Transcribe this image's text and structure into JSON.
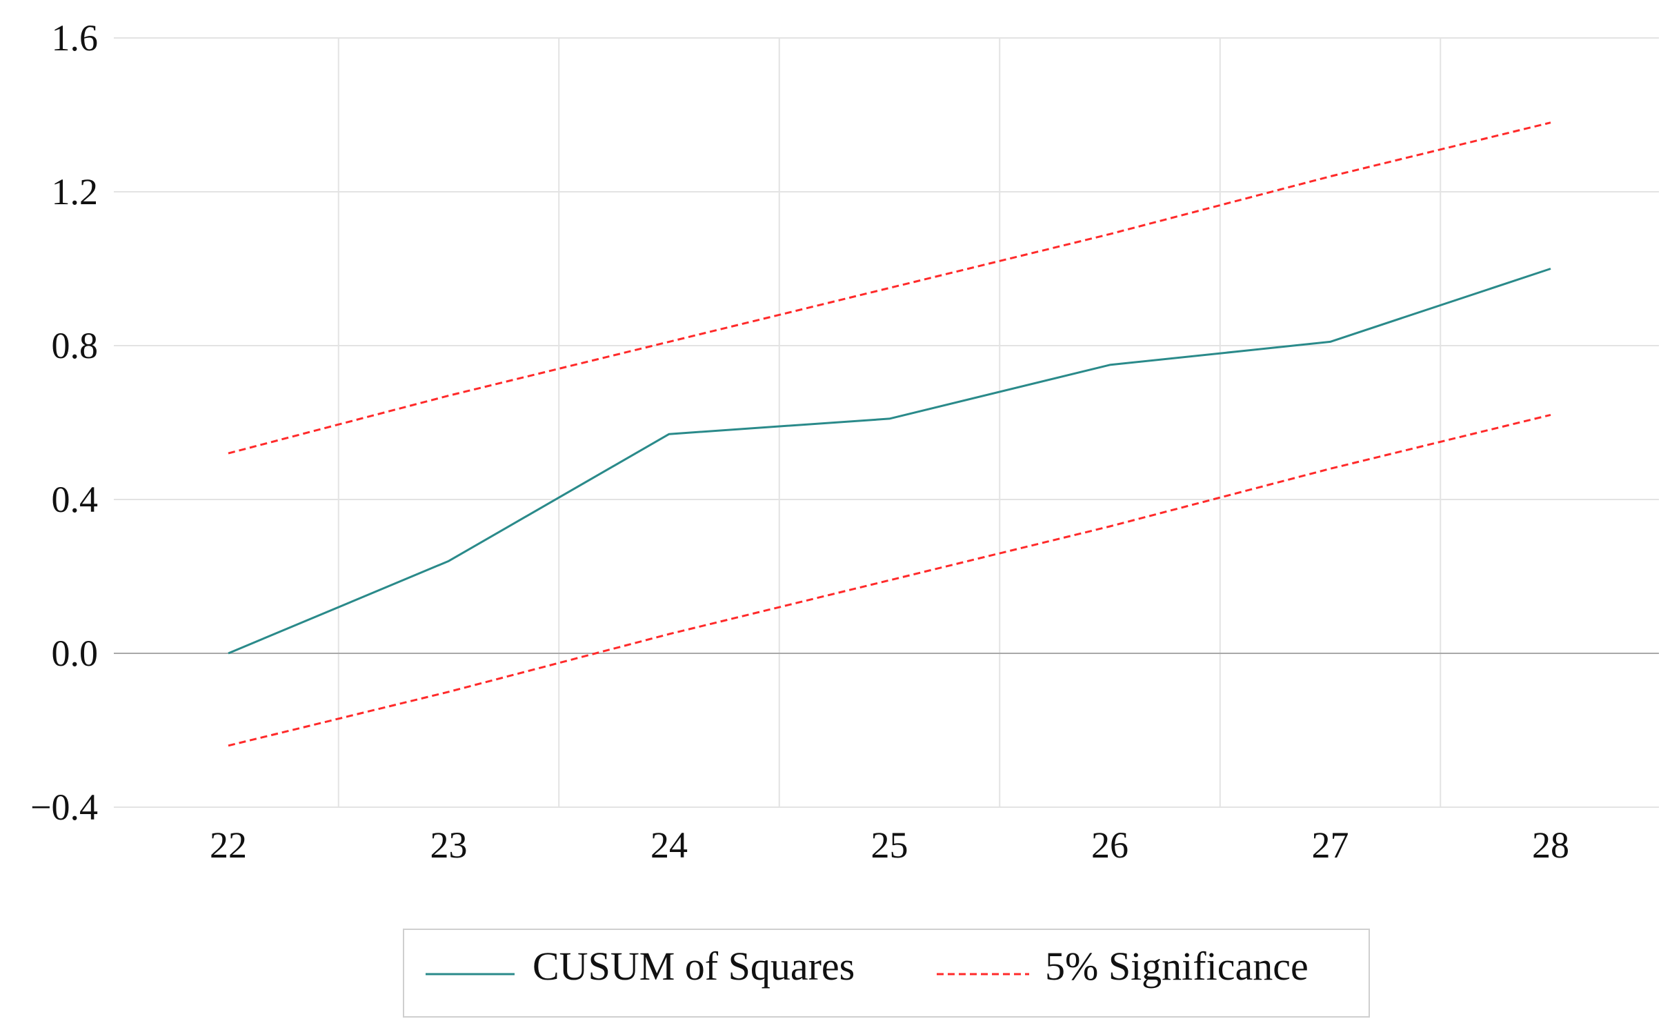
{
  "chart_data": {
    "type": "line",
    "title": "",
    "xlabel": "",
    "ylabel": "",
    "x": [
      22,
      23,
      24,
      25,
      26,
      27,
      28
    ],
    "x_tick_labels": [
      "22",
      "23",
      "24",
      "25",
      "26",
      "27",
      "28"
    ],
    "y_tick_labels": [
      "1.6",
      "1.2",
      "0.8",
      "0.4",
      "0.0",
      "−0.4"
    ],
    "y_ticks": [
      1.6,
      1.2,
      0.8,
      0.4,
      0.0,
      -0.4
    ],
    "xlim": [
      21.5,
      28.5
    ],
    "ylim": [
      -0.4,
      1.6
    ],
    "grid": true,
    "legend_position": "bottom-center",
    "series": [
      {
        "name": "CUSUM of Squares",
        "style": "solid",
        "color": "#2a8a8a",
        "values": [
          0.0,
          0.24,
          0.57,
          0.61,
          0.75,
          0.81,
          1.0
        ]
      },
      {
        "name": "5% Significance",
        "style": "dashed",
        "color": "#ff2a2a",
        "values": [
          0.52,
          0.67,
          0.81,
          0.95,
          1.09,
          1.24,
          1.38
        ]
      },
      {
        "name": "",
        "style": "dashed",
        "color": "#ff2a2a",
        "values": [
          -0.24,
          -0.1,
          0.05,
          0.19,
          0.33,
          0.48,
          0.62
        ]
      }
    ],
    "legend": [
      {
        "label": "CUSUM of Squares",
        "style": "solid",
        "color": "#2a8a8a"
      },
      {
        "label": "5% Significance",
        "style": "dashed",
        "color": "#ff2a2a"
      }
    ]
  }
}
